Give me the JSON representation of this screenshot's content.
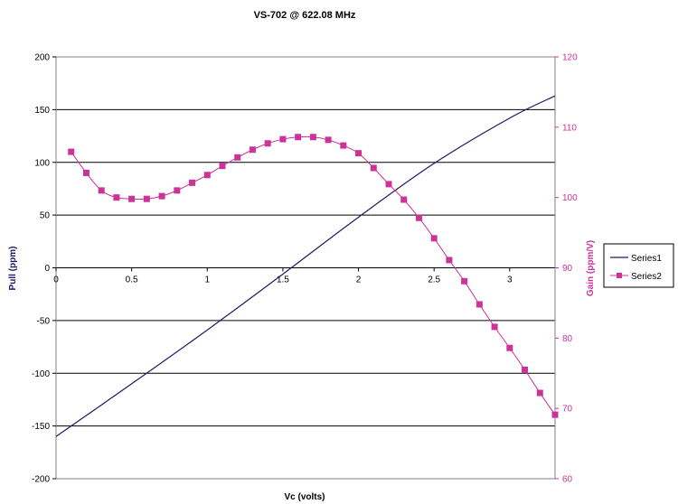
{
  "chart_data": {
    "type": "line",
    "title": "VS-702 @ 622.08 MHz",
    "xlabel": "Vc (volts)",
    "ylabel": "Pull (ppm)",
    "y2label": "Gain (ppm/V)",
    "xlim": [
      0,
      3.3
    ],
    "ylim": [
      -200,
      200
    ],
    "y2lim": [
      60,
      120
    ],
    "x_ticks": [
      "0",
      "0.5",
      "1",
      "1.5",
      "2",
      "2.5",
      "3"
    ],
    "y_ticks": [
      "200",
      "150",
      "100",
      "50",
      "0",
      "-50",
      "-100",
      "-150",
      "-200"
    ],
    "y2_ticks": [
      "120",
      "110",
      "100",
      "90",
      "80",
      "70",
      "60"
    ],
    "grid": "horizontal",
    "legend_position": "right",
    "series": [
      {
        "name": "Series1",
        "axis": "left",
        "color": "#1a1a66",
        "x": [
          0,
          0.5,
          1,
          1.5,
          2,
          2.5,
          3,
          3.3
        ],
        "y": [
          -160,
          -110,
          -59,
          -6,
          48,
          99,
          142,
          163
        ]
      },
      {
        "name": "Series2",
        "axis": "right",
        "color": "#cc3399",
        "marker": "square",
        "x": [
          0.1,
          0.2,
          0.3,
          0.4,
          0.5,
          0.6,
          0.7,
          0.8,
          0.9,
          1.0,
          1.1,
          1.2,
          1.3,
          1.4,
          1.5,
          1.6,
          1.7,
          1.8,
          1.9,
          2.0,
          2.1,
          2.2,
          2.3,
          2.4,
          2.5,
          2.6,
          2.7,
          2.8,
          2.9,
          3.0,
          3.1,
          3.2,
          3.3
        ],
        "y": [
          106.5,
          103.5,
          101,
          100,
          99.8,
          99.8,
          100.2,
          101,
          102.1,
          103.2,
          104.5,
          105.7,
          106.8,
          107.7,
          108.3,
          108.6,
          108.6,
          108.2,
          107.4,
          106.3,
          104.2,
          101.9,
          99.7,
          97.1,
          94.2,
          91.1,
          88.1,
          84.8,
          81.6,
          78.6,
          75.5,
          72.2,
          69.1
        ]
      }
    ]
  }
}
